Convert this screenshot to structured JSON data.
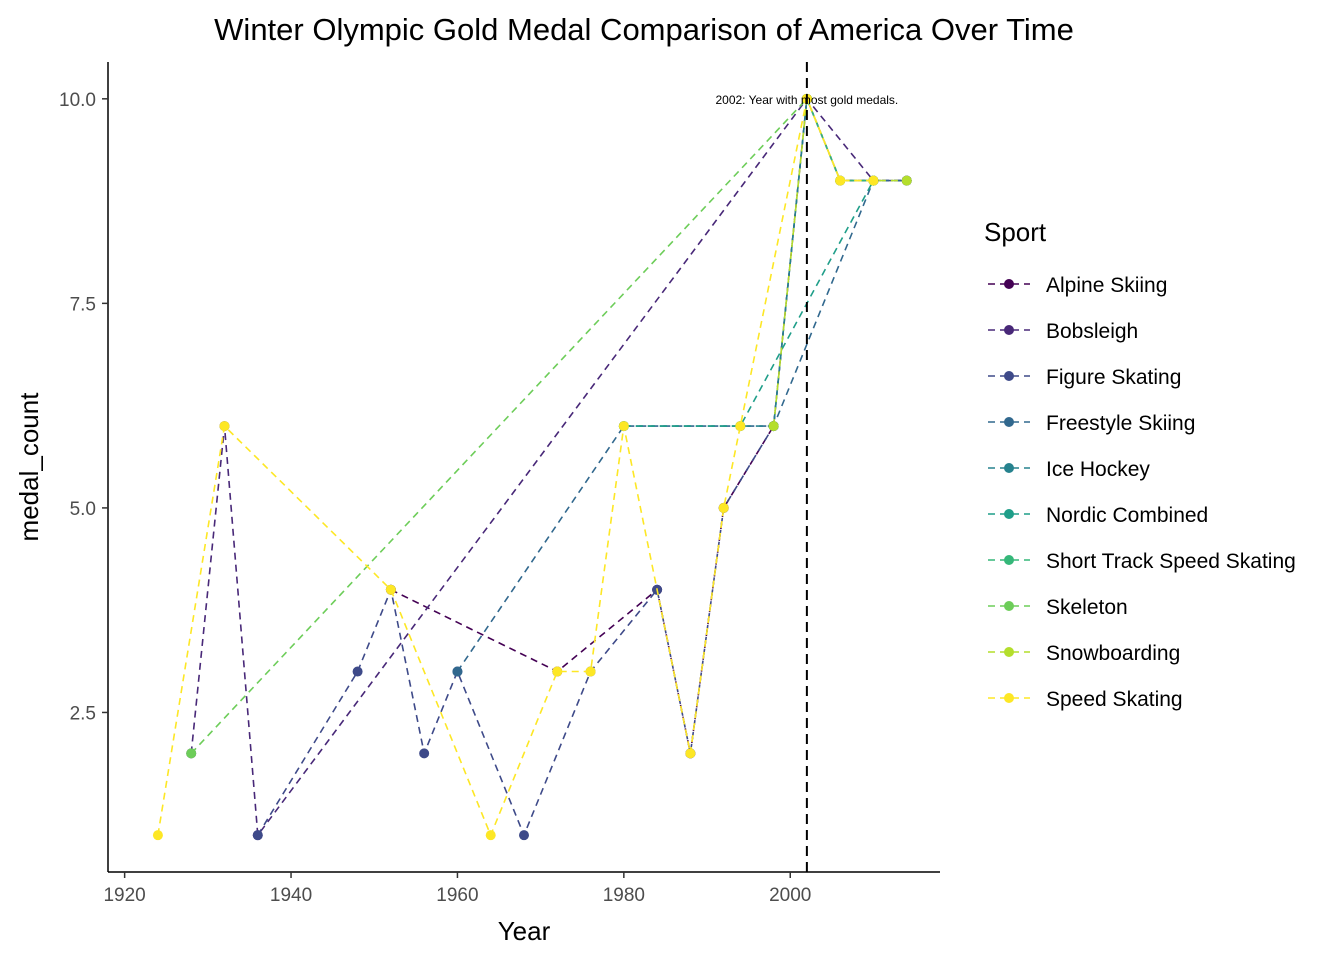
{
  "chart_data": {
    "type": "line",
    "title": "Winter Olympic Gold Medal Comparison of America Over Time",
    "xlabel": "Year",
    "ylabel": "medal_count",
    "xlim": [
      1918,
      2018
    ],
    "ylim": [
      0.55,
      10.45
    ],
    "xticks": [
      1920,
      1940,
      1960,
      1980,
      2000
    ],
    "yticks": [
      2.5,
      5.0,
      7.5,
      10.0
    ],
    "xtick_labels": [
      "1920",
      "1940",
      "1960",
      "1980",
      "2000"
    ],
    "ytick_labels": [
      "2.5",
      "5.0",
      "7.5",
      "10.0"
    ],
    "grid": false,
    "legend": {
      "title": "Sport",
      "position": "right"
    },
    "vline": {
      "x": 2002,
      "style": "dashed",
      "color": "#000000"
    },
    "annotation": {
      "text": "2002: Year with most gold medals.",
      "x": 2002,
      "y": 10
    },
    "series": [
      {
        "name": "Alpine Skiing",
        "color": "#440154",
        "points": [
          [
            1952,
            4
          ],
          [
            1972,
            3
          ],
          [
            1984,
            4
          ],
          [
            1988,
            2
          ],
          [
            1992,
            5
          ],
          [
            1998,
            6
          ],
          [
            2002,
            10
          ],
          [
            2006,
            9
          ],
          [
            2010,
            9
          ],
          [
            2014,
            9
          ]
        ]
      },
      {
        "name": "Bobsleigh",
        "color": "#482878",
        "points": [
          [
            1928,
            2
          ],
          [
            1932,
            6
          ],
          [
            1936,
            1
          ],
          [
            2002,
            10
          ],
          [
            2010,
            9
          ]
        ]
      },
      {
        "name": "Figure Skating",
        "color": "#3E4A89",
        "points": [
          [
            1936,
            1
          ],
          [
            1948,
            3
          ],
          [
            1952,
            4
          ],
          [
            1956,
            2
          ],
          [
            1960,
            3
          ],
          [
            1968,
            1
          ],
          [
            1976,
            3
          ],
          [
            1984,
            4
          ],
          [
            1988,
            2
          ],
          [
            1992,
            5
          ],
          [
            1998,
            6
          ],
          [
            2002,
            10
          ],
          [
            2006,
            9
          ],
          [
            2010,
            9
          ],
          [
            2014,
            9
          ]
        ]
      },
      {
        "name": "Freestyle Skiing",
        "color": "#31688E",
        "points": [
          [
            1960,
            3
          ],
          [
            1980,
            6
          ],
          [
            1994,
            6
          ],
          [
            1998,
            6
          ],
          [
            2010,
            9
          ],
          [
            2014,
            9
          ]
        ]
      },
      {
        "name": "Ice Hockey",
        "color": "#26828E",
        "points": [
          [
            1980,
            6
          ],
          [
            1998,
            6
          ],
          [
            2002,
            10
          ]
        ]
      },
      {
        "name": "Nordic Combined",
        "color": "#1F9E89",
        "points": [
          [
            1980,
            6
          ],
          [
            1994,
            6
          ],
          [
            2010,
            9
          ]
        ]
      },
      {
        "name": "Short Track Speed Skating",
        "color": "#35B779",
        "points": [
          [
            2002,
            10
          ],
          [
            2006,
            9
          ],
          [
            2010,
            9
          ]
        ]
      },
      {
        "name": "Skeleton",
        "color": "#6DCD59",
        "points": [
          [
            1928,
            2
          ],
          [
            2002,
            10
          ]
        ]
      },
      {
        "name": "Snowboarding",
        "color": "#B4DE2C",
        "points": [
          [
            1998,
            6
          ],
          [
            2002,
            10
          ],
          [
            2006,
            9
          ],
          [
            2010,
            9
          ],
          [
            2014,
            9
          ]
        ]
      },
      {
        "name": "Speed Skating",
        "color": "#FDE725",
        "points": [
          [
            1924,
            1
          ],
          [
            1932,
            6
          ],
          [
            1952,
            4
          ],
          [
            1964,
            1
          ],
          [
            1972,
            3
          ],
          [
            1976,
            3
          ],
          [
            1980,
            6
          ],
          [
            1988,
            2
          ],
          [
            1992,
            5
          ],
          [
            1994,
            6
          ],
          [
            2002,
            10
          ],
          [
            2006,
            9
          ],
          [
            2010,
            9
          ]
        ]
      }
    ]
  }
}
